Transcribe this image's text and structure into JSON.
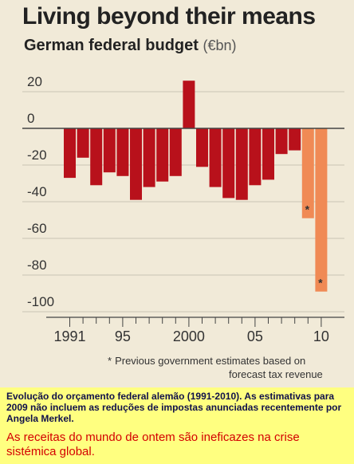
{
  "title": "Living beyond their means",
  "subtitle": "German federal budget",
  "unit": "(€bn)",
  "footnote": {
    "star": "*",
    "line1": "Previous government estimates based on",
    "line2": "forecast tax revenue"
  },
  "caption": {
    "portuguese": "Evolução do orçamento federal alemão (1991-2010). As estimativas para 2009 não incluem as reduções de impostas anunciadas recentemente por Angela Merkel.",
    "highlight": "As receitas do mundo de ontem são ineficazes na crise sistémica global."
  },
  "colors": {
    "actual": "#b8111b",
    "estimate": "#f08a55",
    "panel": "#f1ead8",
    "caption_bg": "#ffff80",
    "caption_red": "#d40000"
  },
  "chart_data": {
    "type": "bar",
    "title": "Living beyond their means",
    "subtitle": "German federal budget (€bn)",
    "xlabel": "",
    "ylabel": "",
    "x": [
      1991,
      1992,
      1993,
      1994,
      1995,
      1996,
      1997,
      1998,
      1999,
      2000,
      2001,
      2002,
      2003,
      2004,
      2005,
      2006,
      2007,
      2008,
      2009,
      2010
    ],
    "values": [
      -27,
      -16,
      -31,
      -24,
      -26,
      -39,
      -32,
      -29,
      -26,
      26,
      -21,
      -32,
      -38,
      -39,
      -31,
      -28,
      -14,
      -12,
      -49,
      -89
    ],
    "estimate_flags": [
      false,
      false,
      false,
      false,
      false,
      false,
      false,
      false,
      false,
      false,
      false,
      false,
      false,
      false,
      false,
      false,
      false,
      false,
      true,
      true
    ],
    "estimate_marker": "*",
    "yticks": [
      20,
      0,
      -20,
      -40,
      -60,
      -80,
      -100
    ],
    "ytick_labels": [
      "20",
      "0",
      "-20",
      "-40",
      "-60",
      "-80",
      "-100"
    ],
    "xtick_labels": [
      {
        "year": 1991,
        "label": "1991"
      },
      {
        "year": 1995,
        "label": "95"
      },
      {
        "year": 2000,
        "label": "2000"
      },
      {
        "year": 2005,
        "label": "05"
      },
      {
        "year": 2010,
        "label": "10"
      }
    ],
    "ylim": [
      -100,
      27
    ],
    "grid": true
  }
}
